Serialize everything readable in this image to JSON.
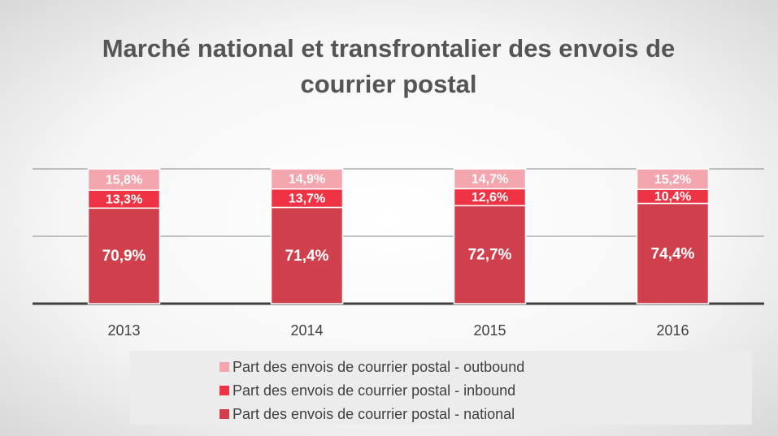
{
  "chart_data": {
    "type": "stacked_bar",
    "title": [
      "Marché national et transfrontalier des envois de",
      "courrier postal"
    ],
    "categories": [
      "2013",
      "2014",
      "2015",
      "2016"
    ],
    "series": [
      {
        "name": "Part des envois de courrier postal - national",
        "color": "#d0404c",
        "values": [
          70.9,
          71.4,
          72.7,
          74.4
        ],
        "value_labels": [
          "70,9%",
          "71,4%",
          "72,7%",
          "74,4%"
        ]
      },
      {
        "name": "Part des envois de courrier postal - inbound",
        "color": "#ee3344",
        "values": [
          13.3,
          13.7,
          12.6,
          10.4
        ],
        "value_labels": [
          "13,3%",
          "13,7%",
          "12,6%",
          "10,4%"
        ]
      },
      {
        "name": "Part des envois de courrier postal - outbound",
        "color": "#f4a6ae",
        "values": [
          15.8,
          14.9,
          14.7,
          15.2
        ],
        "value_labels": [
          "15,8%",
          "14,9%",
          "14,7%",
          "15,2%"
        ]
      }
    ],
    "ylim": [
      0,
      100
    ],
    "yticks": [
      0,
      50,
      100
    ],
    "show_tick_labels": false,
    "grid": true,
    "legend": "bottom"
  }
}
